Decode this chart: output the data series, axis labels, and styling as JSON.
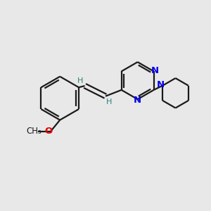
{
  "background_color": "#e8e8e8",
  "bond_color": "#1a1a1a",
  "nitrogen_color": "#0000ee",
  "oxygen_color": "#dd0000",
  "h_label_color": "#2a8080",
  "methoxy_color": "#1a1a1a",
  "bond_width": 1.6,
  "font_size_atom": 9.5,
  "font_size_h": 8.0,
  "font_size_methoxy": 8.5,
  "fig_size": [
    3.0,
    3.0
  ],
  "dpi": 100,
  "xlim": [
    0,
    10
  ],
  "ylim": [
    0,
    10
  ]
}
